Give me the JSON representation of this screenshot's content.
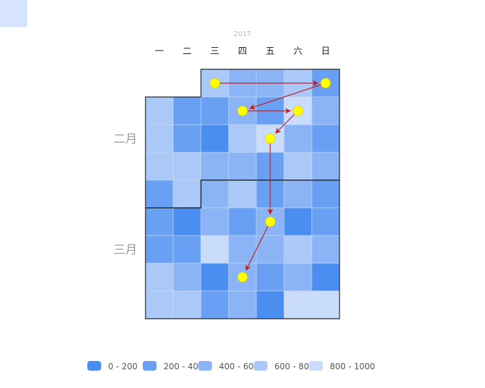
{
  "chart_data": {
    "type": "heatmap",
    "subtype": "calendar",
    "year_label": "2017",
    "weekday_labels": [
      "一",
      "二",
      "三",
      "四",
      "五",
      "六",
      "日"
    ],
    "month_labels": [
      "二月",
      "三月"
    ],
    "first_day_column": 2,
    "month_break_day": 28,
    "day_bins": [
      3,
      2,
      2,
      3,
      1,
      3,
      1,
      1,
      2,
      1,
      4,
      2,
      3,
      1,
      0,
      3,
      4,
      2,
      1,
      3,
      3,
      2,
      2,
      1,
      3,
      2,
      1,
      3,
      2,
      3,
      1,
      2,
      1,
      1,
      0,
      2,
      1,
      2,
      0,
      1,
      1,
      1,
      4,
      2,
      2,
      3,
      2,
      3,
      2,
      0,
      2,
      1,
      2,
      0,
      3,
      3,
      1,
      2,
      0,
      4,
      4
    ],
    "highlight_days": [
      1,
      5,
      9,
      11,
      17,
      38,
      51
    ],
    "legend": [
      {
        "label": "0 - 200",
        "color": "#4a8ef2"
      },
      {
        "label": "200 - 400",
        "color": "#69a0f4"
      },
      {
        "label": "400 - 600",
        "color": "#8ab4f6"
      },
      {
        "label": "600 - 800",
        "color": "#aac8f8"
      },
      {
        "label": "800 - 1000",
        "color": "#c9dcfb"
      }
    ],
    "marker_color": "#ffff00",
    "arrow_color": "#c81a1a"
  }
}
